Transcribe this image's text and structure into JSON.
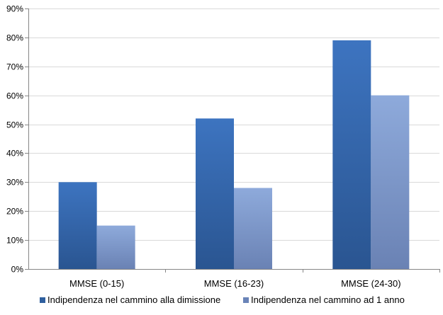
{
  "chart_data": {
    "type": "bar",
    "title": "",
    "xlabel": "",
    "ylabel": "",
    "categories": [
      "MMSE (0-15)",
      "MMSE (16-23)",
      "MMSE (24-30)"
    ],
    "series": [
      {
        "name": "Indipendenza nel cammino alla dimissione",
        "values": [
          30,
          52,
          79
        ],
        "color": "#2f5f9e",
        "color_light": "#3d74c0"
      },
      {
        "name": "Indipendenza nel cammino ad 1 anno",
        "values": [
          15,
          28,
          60
        ],
        "color": "#6a84b8",
        "color_light": "#8eaadb"
      }
    ],
    "ylim": [
      0,
      90
    ],
    "ytick_step": 10,
    "ytick_labels": [
      "0%",
      "10%",
      "20%",
      "30%",
      "40%",
      "50%",
      "60%",
      "70%",
      "80%",
      "90%"
    ],
    "grid": true,
    "legend_position": "bottom"
  }
}
